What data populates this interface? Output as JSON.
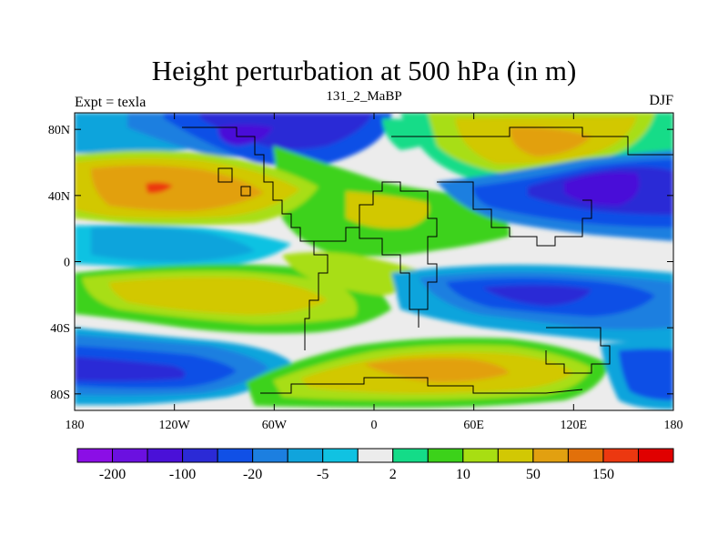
{
  "chart_data": {
    "type": "heatmap",
    "title": "Height perturbation at 500 hPa (in m)",
    "left_string": "Expt = texla",
    "center_string": "131_2_MaBP",
    "right_string": "DJF",
    "x_ticks": [
      {
        "label": "180",
        "value": -180
      },
      {
        "label": "120W",
        "value": -120
      },
      {
        "label": "60W",
        "value": -60
      },
      {
        "label": "0",
        "value": 0
      },
      {
        "label": "60E",
        "value": 60
      },
      {
        "label": "120E",
        "value": 120
      },
      {
        "label": "180",
        "value": 180
      }
    ],
    "y_ticks": [
      {
        "label": "80N",
        "value": 80
      },
      {
        "label": "40N",
        "value": 40
      },
      {
        "label": "0",
        "value": 0
      },
      {
        "label": "40S",
        "value": -40
      },
      {
        "label": "80S",
        "value": -80
      }
    ],
    "xlim": [
      -180,
      180
    ],
    "ylim": [
      -90,
      90
    ],
    "colorbar": {
      "boundary_labels": [
        {
          "label": "-200",
          "index": 1
        },
        {
          "label": "-100",
          "index": 3
        },
        {
          "label": "-20",
          "index": 5
        },
        {
          "label": "-5",
          "index": 7
        },
        {
          "label": "2",
          "index": 9
        },
        {
          "label": "10",
          "index": 11
        },
        {
          "label": "50",
          "index": 13
        },
        {
          "label": "150",
          "index": 15
        }
      ],
      "colors": [
        "#8b0ee6",
        "#6b10e0",
        "#4a10d8",
        "#2b2ad6",
        "#1050e6",
        "#1c7fe0",
        "#10a4dc",
        "#10c2e2",
        "#ececec",
        "#14dc88",
        "#3cd21a",
        "#a8de12",
        "#d2c804",
        "#e2a010",
        "#e2700a",
        "#ec3810",
        "#e00000"
      ]
    },
    "anomaly_centers": [
      {
        "lon": -140,
        "lat": 42,
        "level": "50 to 150",
        "sign": "positive"
      },
      {
        "lon": -150,
        "lat": 70,
        "level": "-20 to -5",
        "sign": "negative"
      },
      {
        "lon": -50,
        "lat": 75,
        "level": "-100 to -20",
        "sign": "negative"
      },
      {
        "lon": 88,
        "lat": 70,
        "level": "10 to 50",
        "sign": "positive"
      },
      {
        "lon": 140,
        "lat": 42,
        "level": "-200 to -100",
        "sign": "negative"
      },
      {
        "lon": -135,
        "lat": 12,
        "level": "-20 to -5",
        "sign": "negative"
      },
      {
        "lon": -120,
        "lat": -20,
        "level": "10 to 50",
        "sign": "positive"
      },
      {
        "lon": -40,
        "lat": -5,
        "level": "10 to 50",
        "sign": "positive"
      },
      {
        "lon": 100,
        "lat": -27,
        "level": "-100 to -20",
        "sign": "negative"
      },
      {
        "lon": -140,
        "lat": -65,
        "level": "-100 to -20",
        "sign": "negative"
      },
      {
        "lon": 30,
        "lat": -65,
        "level": "10 to 50",
        "sign": "positive"
      },
      {
        "lon": 165,
        "lat": -65,
        "level": "-100 to -20",
        "sign": "negative"
      }
    ]
  }
}
